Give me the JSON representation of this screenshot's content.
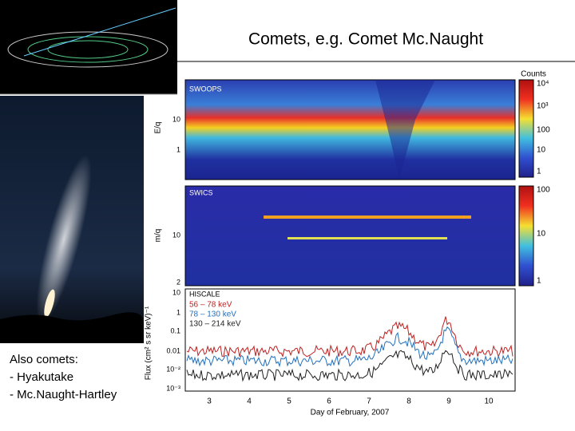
{
  "title": "Comets, e.g. Comet Mc.Naught",
  "note": {
    "heading": "Also comets:",
    "items": [
      "- Hyakutake",
      "- Mc.Naught-Hartley"
    ]
  },
  "figure": {
    "panels": [
      {
        "name": "SWOOPS",
        "ylabel": "E/q",
        "yticks": [
          "10",
          "1"
        ]
      },
      {
        "name": "SWICS",
        "ylabel": "m/q",
        "yticks": [
          "10",
          "2"
        ]
      },
      {
        "name": "HISCALE",
        "ylabel": "Flux (cm² s sr keV)⁻¹",
        "yticks": [
          "10",
          "1",
          "0.1",
          "0.01",
          "10⁻²",
          "10⁻³"
        ]
      }
    ],
    "legend": [
      "56 – 78 keV",
      "78 – 130 keV",
      "130 – 214 keV"
    ],
    "xticks": [
      "3",
      "4",
      "5",
      "6",
      "7",
      "8",
      "9",
      "10"
    ],
    "xlabel": "Day of February, 2007",
    "colorbar_title": "Counts",
    "colorbar_ticks": [
      [
        "10⁴",
        "10³",
        "100",
        "10",
        "1"
      ],
      [
        "100",
        "10",
        "1"
      ]
    ]
  }
}
